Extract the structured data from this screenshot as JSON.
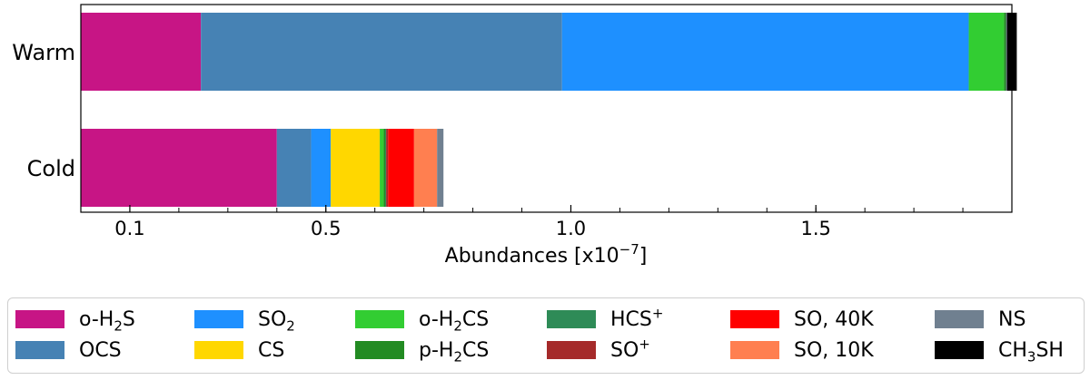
{
  "chart_data": {
    "type": "bar",
    "orientation": "horizontal",
    "stacked": true,
    "categories": [
      "Warm",
      "Cold"
    ],
    "xlabel": "Abundances [x10⁻⁷]",
    "xlim": [
      0.0,
      1.9
    ],
    "x_tick_labels": [
      "0.1",
      "0.5",
      "1.0",
      "1.5"
    ],
    "x_tick_values": [
      0.1,
      0.5,
      1.0,
      1.5
    ],
    "legend_position": "bottom",
    "series": [
      {
        "name": "o-H2S",
        "label_html": "o-H<sub>2</sub>S",
        "color": "#c71585",
        "values": [
          0.245,
          0.4
        ]
      },
      {
        "name": "OCS",
        "label_html": "OCS",
        "color": "#4682b4",
        "values": [
          0.737,
          0.07
        ]
      },
      {
        "name": "SO2",
        "label_html": "SO<sub>2</sub>",
        "color": "#1e90ff",
        "values": [
          0.83,
          0.04
        ]
      },
      {
        "name": "CS",
        "label_html": "CS",
        "color": "#ffd700",
        "values": [
          0.0,
          0.1
        ]
      },
      {
        "name": "o-H2CS",
        "label_html": "o-H<sub>2</sub>CS",
        "color": "#32cd32",
        "values": [
          0.072,
          0.008
        ]
      },
      {
        "name": "p-H2CS",
        "label_html": "p-H<sub>2</sub>CS",
        "color": "#228b22",
        "values": [
          0.004,
          0.003
        ]
      },
      {
        "name": "HCS+",
        "label_html": "HCS<sup>+</sup>",
        "color": "#2e8b57",
        "values": [
          0.0,
          0.002
        ]
      },
      {
        "name": "SO+",
        "label_html": "SO<sup>+</sup>",
        "color": "#a52a2a",
        "values": [
          0.0,
          0.004
        ]
      },
      {
        "name": "SO, 40K",
        "label_html": "SO, 40K",
        "color": "#ff0000",
        "values": [
          0.0,
          0.053
        ]
      },
      {
        "name": "SO, 10K",
        "label_html": "SO, 10K",
        "color": "#ff7f50",
        "values": [
          0.0,
          0.047
        ]
      },
      {
        "name": "NS",
        "label_html": "NS",
        "color": "#708090",
        "values": [
          0.002,
          0.013
        ]
      },
      {
        "name": "CH3SH",
        "label_html": "CH<sub>3</sub>SH",
        "color": "#000000",
        "values": [
          0.02,
          0.0
        ]
      }
    ]
  }
}
